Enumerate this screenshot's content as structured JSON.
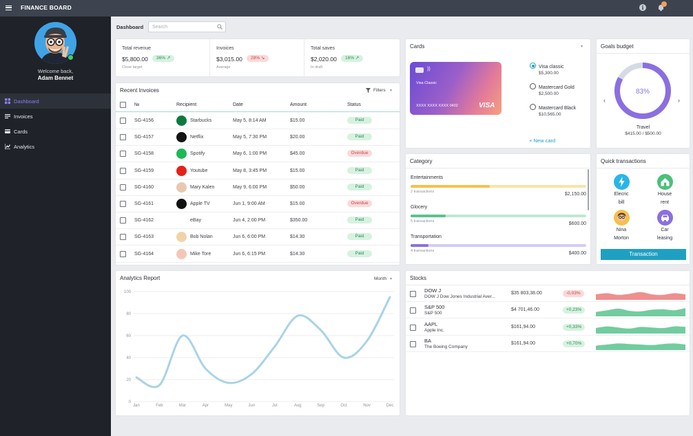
{
  "app": {
    "title": "FINANCE BOARD",
    "notification_count": ""
  },
  "icons": {
    "menu": "hamburger-icon",
    "info": "info-icon",
    "bell": "bell-icon",
    "search": "search-icon",
    "filter": "filter-icon",
    "plus": "plus-icon"
  },
  "colors": {
    "accent": "#1ea0c3",
    "purple": "#8b6fe0",
    "sidebar": "#1f2228",
    "topbar": "#3d4450",
    "positive": "#2f8a55",
    "negative": "#c84343"
  },
  "user": {
    "welcome": "Welcome back,",
    "name": "Adam Bennet"
  },
  "nav": [
    {
      "label": "Dashboard",
      "icon": "grid-icon",
      "active": true
    },
    {
      "label": "Invoices",
      "icon": "list-icon",
      "active": false
    },
    {
      "label": "Cards",
      "icon": "card-icon",
      "active": false
    },
    {
      "label": "Analytics",
      "icon": "chart-icon",
      "active": false
    }
  ],
  "header": {
    "breadcrumb": "Dashboard",
    "search_placeholder": "Search"
  },
  "stats": [
    {
      "label": "Total revenue",
      "value": "$5,800.00",
      "change": "36% ↗",
      "trend": "up",
      "sub": "Close target"
    },
    {
      "label": "Invoices",
      "value": "$3,015.00",
      "change": "28% ↘",
      "trend": "down",
      "sub": "Average"
    },
    {
      "label": "Total saves",
      "value": "$2,020.00",
      "change": "16% ↗",
      "trend": "up",
      "sub": "In draft"
    }
  ],
  "invoices": {
    "title": "Recent Invoices",
    "filter_label": "Filters",
    "columns": [
      "№",
      "Recipient",
      "Date",
      "Amount",
      "Status"
    ],
    "rows": [
      {
        "id": "SG-4156",
        "recipient": "Starbucks",
        "logo": "starbucks-logo",
        "logo_color": "#0b7a3e",
        "date": "May 5, 8:14 AM",
        "amount": "$15.00",
        "status": "Paid"
      },
      {
        "id": "SG-4157",
        "recipient": "Netflix",
        "logo": "netflix-logo",
        "logo_color": "#141414",
        "date": "May 5, 7:30 PM",
        "amount": "$20.00",
        "status": "Paid"
      },
      {
        "id": "SG-4158",
        "recipient": "Spotify",
        "logo": "spotify-logo",
        "logo_color": "#1db954",
        "date": "May 6, 1:00 PM",
        "amount": "$45.00",
        "status": "Overdue"
      },
      {
        "id": "SG-4159",
        "recipient": "Youtube",
        "logo": "youtube-logo",
        "logo_color": "#e62117",
        "date": "May 8, 3:45 PM",
        "amount": "$15.00",
        "status": "Paid"
      },
      {
        "id": "SG-4160",
        "recipient": "Mary Kalen",
        "logo": "person-avatar",
        "logo_color": "#e8c9b0",
        "date": "May 9, 6:00 PM",
        "amount": "$50.00",
        "status": "Paid"
      },
      {
        "id": "SG-4161",
        "recipient": "Apple TV",
        "logo": "apple-tv-logo",
        "logo_color": "#111111",
        "date": "Jun 1, 9:00 AM",
        "amount": "$15.00",
        "status": "Overdue"
      },
      {
        "id": "SG-4162",
        "recipient": "eBay",
        "logo": "ebay-logo",
        "logo_color": "#ffffff",
        "date": "Jun 4, 2:00 PM",
        "amount": "$350.00",
        "status": "Paid"
      },
      {
        "id": "SG-4163",
        "recipient": "Bob Nolan",
        "logo": "person-avatar",
        "logo_color": "#f2d3a8",
        "date": "Jun 6, 6:00 PM",
        "amount": "$14.30",
        "status": "Paid"
      },
      {
        "id": "SG-4164",
        "recipient": "Mike Tore",
        "logo": "person-avatar",
        "logo_color": "#f5c6b8",
        "date": "Jun 6, 6:15 PM",
        "amount": "$14.30",
        "status": "Paid"
      }
    ]
  },
  "cards": {
    "title": "Cards",
    "card_name": "Visa Classic",
    "card_number": "XXXX XXXX XXXX 0402",
    "card_brand": "VISA",
    "options": [
      {
        "name": "Visa classic",
        "amount": "$5,300.00",
        "selected": true
      },
      {
        "name": "Mastercard Gold",
        "amount": "$2,500.00",
        "selected": false
      },
      {
        "name": "Mastercard Black",
        "amount": "$10,565.00",
        "selected": false
      }
    ],
    "new_card_label": "New card"
  },
  "goals": {
    "title": "Goals budget",
    "percent": 83,
    "percent_label": "83%",
    "name": "Travel",
    "amounts": "$415.00 / $500.00"
  },
  "category": {
    "title": "Category",
    "items": [
      {
        "name": "Entertainments",
        "transactions": "2 transactions",
        "amount": "$2,150.00",
        "fill": 0.45,
        "color": "#f6c04a",
        "track": "#fae3a8"
      },
      {
        "name": "Glocery",
        "transactions": "5 transactions",
        "amount": "$600.00",
        "fill": 0.2,
        "color": "#59c38e",
        "track": "#bfe8d3"
      },
      {
        "name": "Transportation",
        "transactions": "4 transactions",
        "amount": "$400.00",
        "fill": 0.1,
        "color": "#8b6fe0",
        "track": "#d5cbf5"
      }
    ]
  },
  "quick": {
    "title": "Quick transactions",
    "items": [
      {
        "line1": "Elecric",
        "line2": "bill",
        "icon": "lightning-icon",
        "color": "#29b6e6"
      },
      {
        "line1": "House",
        "line2": "rent",
        "icon": "house-icon",
        "color": "#4cc07a"
      },
      {
        "line1": "Nina",
        "line2": "Morton",
        "icon": "person-avatar",
        "color": "#f6c04a"
      },
      {
        "line1": "Car",
        "line2": "leasing",
        "icon": "car-icon",
        "color": "#8b6fe0"
      }
    ],
    "button_label": "Transaction"
  },
  "analytics": {
    "title": "Analytics Report",
    "period": "Month"
  },
  "chart_data": {
    "type": "line",
    "categories": [
      "Jan",
      "Feb",
      "Mar",
      "Apr",
      "May",
      "Jun",
      "Jul",
      "Aug",
      "Sep",
      "Oct",
      "Nov",
      "Dec"
    ],
    "series": [
      {
        "values": [
          22,
          15,
          60,
          30,
          17,
          25,
          50,
          78,
          65,
          40,
          55,
          95
        ]
      }
    ],
    "yticks": [
      0,
      20,
      40,
      60,
      80,
      100
    ],
    "ylim": [
      0,
      100
    ],
    "grid": true,
    "color": "#a8d3e6"
  },
  "stocks": {
    "title": "Stocks",
    "rows": [
      {
        "symbol": "DOW J",
        "name": "DOW J Dow Jones Industrial Aver...",
        "price": "$35 803,38.00",
        "change": "-0,03%",
        "trend": "down",
        "spark": [
          0.5,
          0.6,
          0.45,
          0.55,
          0.7,
          0.5,
          0.45,
          0.6,
          0.5
        ]
      },
      {
        "symbol": "S&P 500",
        "name": "S&P 500",
        "price": "$4 701,46.00",
        "change": "+0,23%",
        "trend": "up",
        "spark": [
          0.4,
          0.55,
          0.7,
          0.5,
          0.45,
          0.6,
          0.65,
          0.55,
          0.75
        ]
      },
      {
        "symbol": "AAPL",
        "name": "Apple Inc.",
        "price": "$161,94.00",
        "change": "+0,33%",
        "trend": "up",
        "spark": [
          0.5,
          0.65,
          0.55,
          0.45,
          0.6,
          0.55,
          0.5,
          0.65,
          0.6
        ]
      },
      {
        "symbol": "BA",
        "name": "The Boeing Company",
        "price": "$161,94.00",
        "change": "+0,70%",
        "trend": "up",
        "spark": [
          0.4,
          0.5,
          0.6,
          0.55,
          0.5,
          0.45,
          0.55,
          0.6,
          0.5
        ]
      }
    ]
  }
}
